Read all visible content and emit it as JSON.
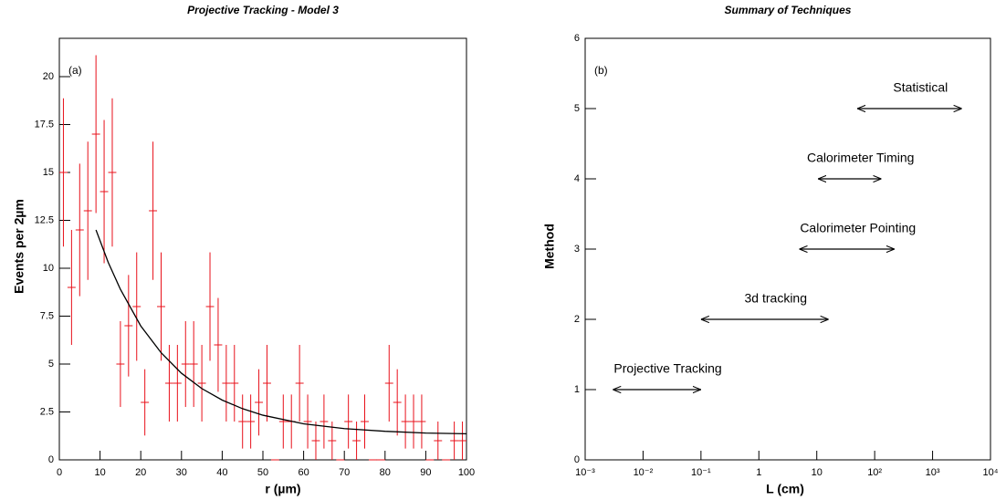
{
  "chart_data": [
    {
      "type": "errorbar",
      "title": "Projective Tracking - Model 3",
      "x_label": "r (µm)",
      "y_label": "Events per 2µm",
      "annotation": "(a)",
      "x": [
        1,
        3,
        5,
        7,
        9,
        11,
        13,
        15,
        17,
        19,
        21,
        23,
        25,
        27,
        29,
        31,
        33,
        35,
        37,
        39,
        41,
        43,
        45,
        47,
        49,
        51,
        53,
        55,
        57,
        59,
        61,
        63,
        65,
        67,
        69,
        71,
        73,
        75,
        77,
        79,
        81,
        83,
        85,
        87,
        89,
        91,
        93,
        95,
        97,
        99
      ],
      "values": [
        15,
        9,
        12,
        13,
        17,
        14,
        15,
        5,
        7,
        8,
        3,
        13,
        8,
        4,
        4,
        5,
        5,
        4,
        8,
        6,
        4,
        4,
        2,
        2,
        3,
        4,
        0,
        2,
        2,
        4,
        2,
        1,
        2,
        1,
        0,
        2,
        1,
        2,
        0,
        0,
        4,
        3,
        2,
        2,
        2,
        0,
        1,
        0,
        1,
        1
      ],
      "errors": [
        3.87,
        3,
        3.46,
        3.61,
        4.12,
        3.74,
        3.87,
        2.24,
        2.65,
        2.83,
        1.73,
        3.61,
        2.83,
        2,
        2,
        2.24,
        2.24,
        2,
        2.83,
        2.45,
        2,
        2,
        1.41,
        1.41,
        1.73,
        2,
        0,
        1.41,
        1.41,
        2,
        1.41,
        1,
        1.41,
        1,
        0,
        1.41,
        1,
        1.41,
        0,
        0,
        2,
        1.73,
        1.41,
        1.41,
        1.41,
        0,
        1,
        0,
        1,
        1
      ],
      "xerr": 1,
      "color": "#e8101a",
      "fit": {
        "x": [
          9,
          12,
          15,
          20,
          25,
          30,
          35,
          40,
          45,
          50,
          60,
          70,
          80,
          90,
          100
        ],
        "values": [
          12.0,
          10.31,
          8.9,
          6.99,
          5.59,
          4.52,
          3.72,
          3.12,
          2.67,
          2.33,
          1.88,
          1.63,
          1.49,
          1.4,
          1.36
        ],
        "color": "#000000"
      },
      "xlim": [
        0,
        100
      ],
      "xticks": [
        0,
        10,
        20,
        30,
        40,
        50,
        60,
        70,
        80,
        90,
        100
      ],
      "ylim": [
        0,
        22
      ],
      "yticks": [
        0,
        2.5,
        5,
        7.5,
        10,
        12.5,
        15,
        17.5,
        20
      ]
    },
    {
      "type": "range",
      "title": "Summary of Techniques",
      "x_label": "L (cm)",
      "y_label": "Method",
      "annotation": "(b)",
      "xlog": true,
      "color": "#000000",
      "series": [
        {
          "name": "Projective Tracking",
          "y": 1,
          "low": 0.003,
          "high": 0.1
        },
        {
          "name": "3d tracking",
          "y": 2,
          "low": 0.1,
          "high": 16
        },
        {
          "name": "Calorimeter Pointing",
          "y": 3,
          "low": 5,
          "high": 220
        },
        {
          "name": "Calorimeter Timing",
          "y": 4,
          "low": 10.5,
          "high": 130
        },
        {
          "name": "Statistical",
          "y": 5,
          "low": 50,
          "high": 3200
        }
      ],
      "xlim": [
        0.001,
        10000
      ],
      "xticks": [
        {
          "value": 0.001,
          "label": "10⁻³"
        },
        {
          "value": 0.01,
          "label": "10⁻²"
        },
        {
          "value": 0.1,
          "label": "10⁻¹"
        },
        1,
        10,
        {
          "value": 100,
          "label": "10²"
        },
        {
          "value": 1000,
          "label": "10³"
        },
        {
          "value": 10000,
          "label": "10⁴"
        }
      ],
      "ylim": [
        0,
        6
      ],
      "yticks": [
        0,
        1,
        2,
        3,
        4,
        5,
        6
      ]
    }
  ]
}
